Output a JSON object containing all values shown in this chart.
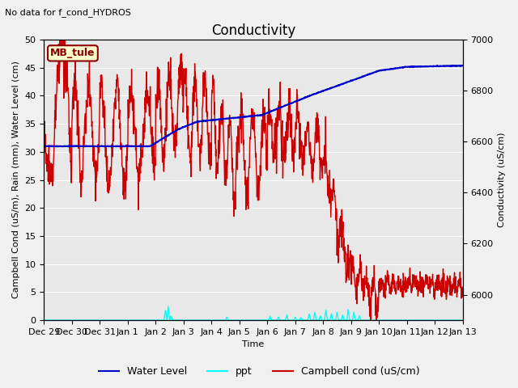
{
  "title": "Conductivity",
  "top_left_text": "No data for f_cond_HYDROS",
  "legend_box_label": "MB_tule",
  "legend_box_facecolor": "#ffffcc",
  "legend_box_edgecolor": "#8b0000",
  "xlabel": "Time",
  "ylabel_left": "Campbell Cond (uS/m), Rain (mm), Water Level (cm)",
  "ylabel_right": "Conductivity (uS/cm)",
  "ylim_left": [
    0,
    50
  ],
  "ylim_right": [
    5900,
    7000
  ],
  "bg_color": "#e8e8e8",
  "grid_color": "#ffffff",
  "fig_facecolor": "#f0f0f0",
  "xtick_labels": [
    "Dec 29",
    "Dec 30",
    "Dec 31",
    "Jan 1",
    "Jan 2",
    "Jan 3",
    "Jan 4",
    "Jan 5",
    "Jan 6",
    "Jan 7",
    "Jan 8",
    "Jan 9",
    "Jan 10",
    "Jan 11",
    "Jan 12",
    "Jan 13"
  ],
  "series": {
    "water_level": {
      "color": "#0000cc",
      "label": "Water Level",
      "linewidth": 1.5
    },
    "ppt": {
      "color": "#00ffff",
      "label": "ppt",
      "linewidth": 1.0
    },
    "campbell_cond": {
      "color": "#cc0000",
      "label": "Campbell cond (uS/cm)",
      "linewidth": 1.0
    }
  },
  "legend_fontsize": 9,
  "title_fontsize": 12,
  "axis_label_fontsize": 8,
  "tick_fontsize": 8
}
